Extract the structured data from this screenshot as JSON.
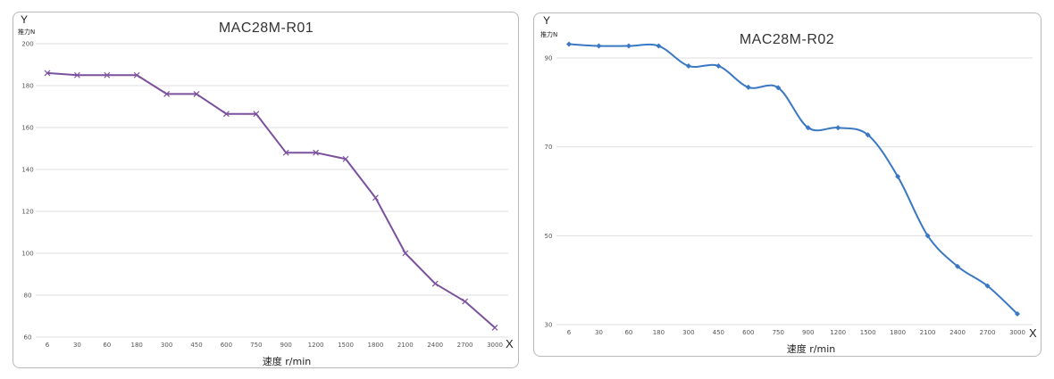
{
  "chart_data": [
    {
      "type": "line",
      "title": "MAC28M-R01",
      "y_axis_letter": "Y",
      "x_axis_letter": "X",
      "ylabel": "推力N",
      "xlabel": "速度 r/min",
      "categories": [
        "6",
        "30",
        "60",
        "180",
        "300",
        "450",
        "600",
        "750",
        "900",
        "1200",
        "1500",
        "1800",
        "2100",
        "2400",
        "2700",
        "3000"
      ],
      "yticks": [
        "200",
        "180",
        "160",
        "140",
        "120",
        "100",
        "80",
        "60"
      ],
      "ylim": [
        60,
        200
      ],
      "series": [
        {
          "values": [
            186,
            185,
            185,
            185,
            176,
            176,
            166.5,
            166.5,
            148,
            148,
            145,
            126.5,
            100,
            85.5,
            77,
            64.5
          ],
          "color": "#7b519d",
          "marker": "x",
          "smooth": false
        }
      ],
      "grid": true
    },
    {
      "type": "line",
      "title": "MAC28M-R02",
      "y_axis_letter": "Y",
      "x_axis_letter": "X",
      "ylabel": "推力N",
      "xlabel": "速度 r/min",
      "categories": [
        "6",
        "30",
        "60",
        "180",
        "300",
        "450",
        "600",
        "750",
        "900",
        "1200",
        "1500",
        "1800",
        "2100",
        "2400",
        "2700",
        "3000"
      ],
      "yticks": [
        "90",
        "70",
        "50",
        "30"
      ],
      "ylim": [
        30,
        90
      ],
      "ygrid": [
        90,
        70,
        50,
        30
      ],
      "series": [
        {
          "values": [
            93.1,
            92.7,
            92.7,
            92.7,
            88.2,
            88.2,
            83.4,
            83.3,
            74.3,
            74.3,
            72.7,
            63.3,
            50,
            43.1,
            38.7,
            32.4
          ],
          "color": "#3a78c3",
          "marker": "diamond",
          "smooth": true
        }
      ],
      "grid": true
    }
  ]
}
